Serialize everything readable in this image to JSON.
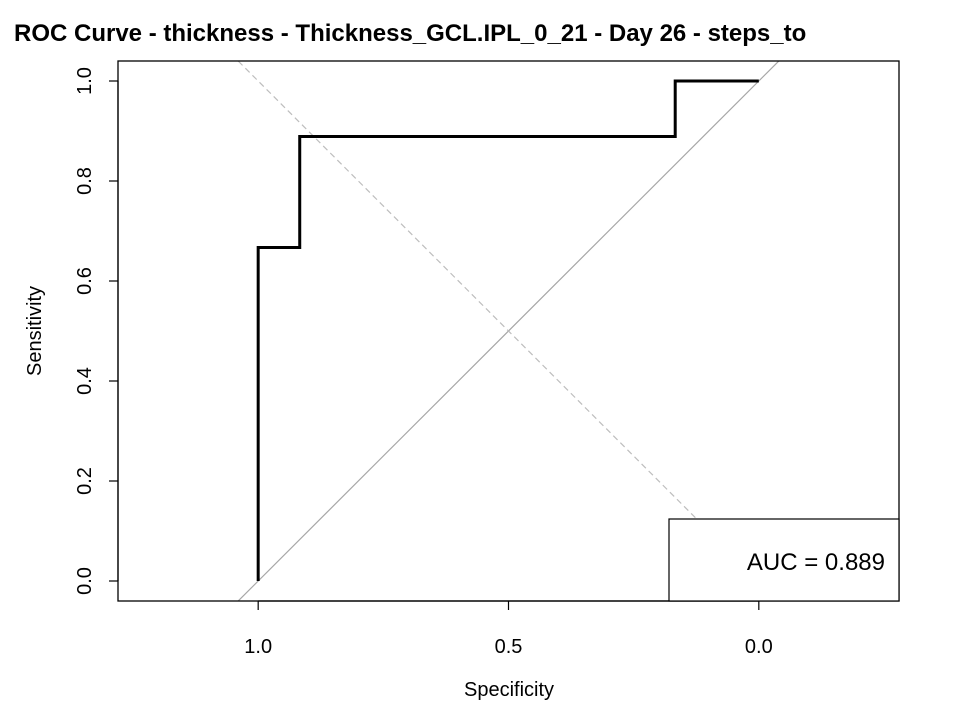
{
  "chart_data": {
    "type": "line",
    "title": "ROC Curve - thickness - Thickness_GCL.IPL_0_21 - Day 26 - steps_to",
    "xlabel": "Specificity",
    "ylabel": "Sensitivity",
    "x_reversed": true,
    "xlim": [
      1.28,
      -0.28
    ],
    "ylim": [
      -0.04,
      1.04
    ],
    "x_ticks": [
      1.0,
      0.5,
      0.0
    ],
    "x_tick_labels": [
      "1.0",
      "0.5",
      "0.0"
    ],
    "y_ticks": [
      0.0,
      0.2,
      0.4,
      0.6,
      0.8,
      1.0
    ],
    "y_tick_labels": [
      "0.0",
      "0.2",
      "0.4",
      "0.6",
      "0.8",
      "1.0"
    ],
    "grid": false,
    "series": [
      {
        "specificity": [
          1.0,
          1.0,
          0.917,
          0.917,
          0.167,
          0.167,
          0.0
        ],
        "sensitivity": [
          0.0,
          0.667,
          0.667,
          0.889,
          0.889,
          1.0,
          1.0
        ],
        "color": "#000000"
      }
    ],
    "reference_lines": [
      {
        "kind": "chance-diagonal",
        "color": "#a6a6a6",
        "style": "solid"
      },
      {
        "kind": "best-threshold-diagonal",
        "color": "#bdbdbd",
        "style": "dashed"
      }
    ],
    "auc_label": "AUC = 0.889",
    "auc_label_position": "bottom-right"
  }
}
